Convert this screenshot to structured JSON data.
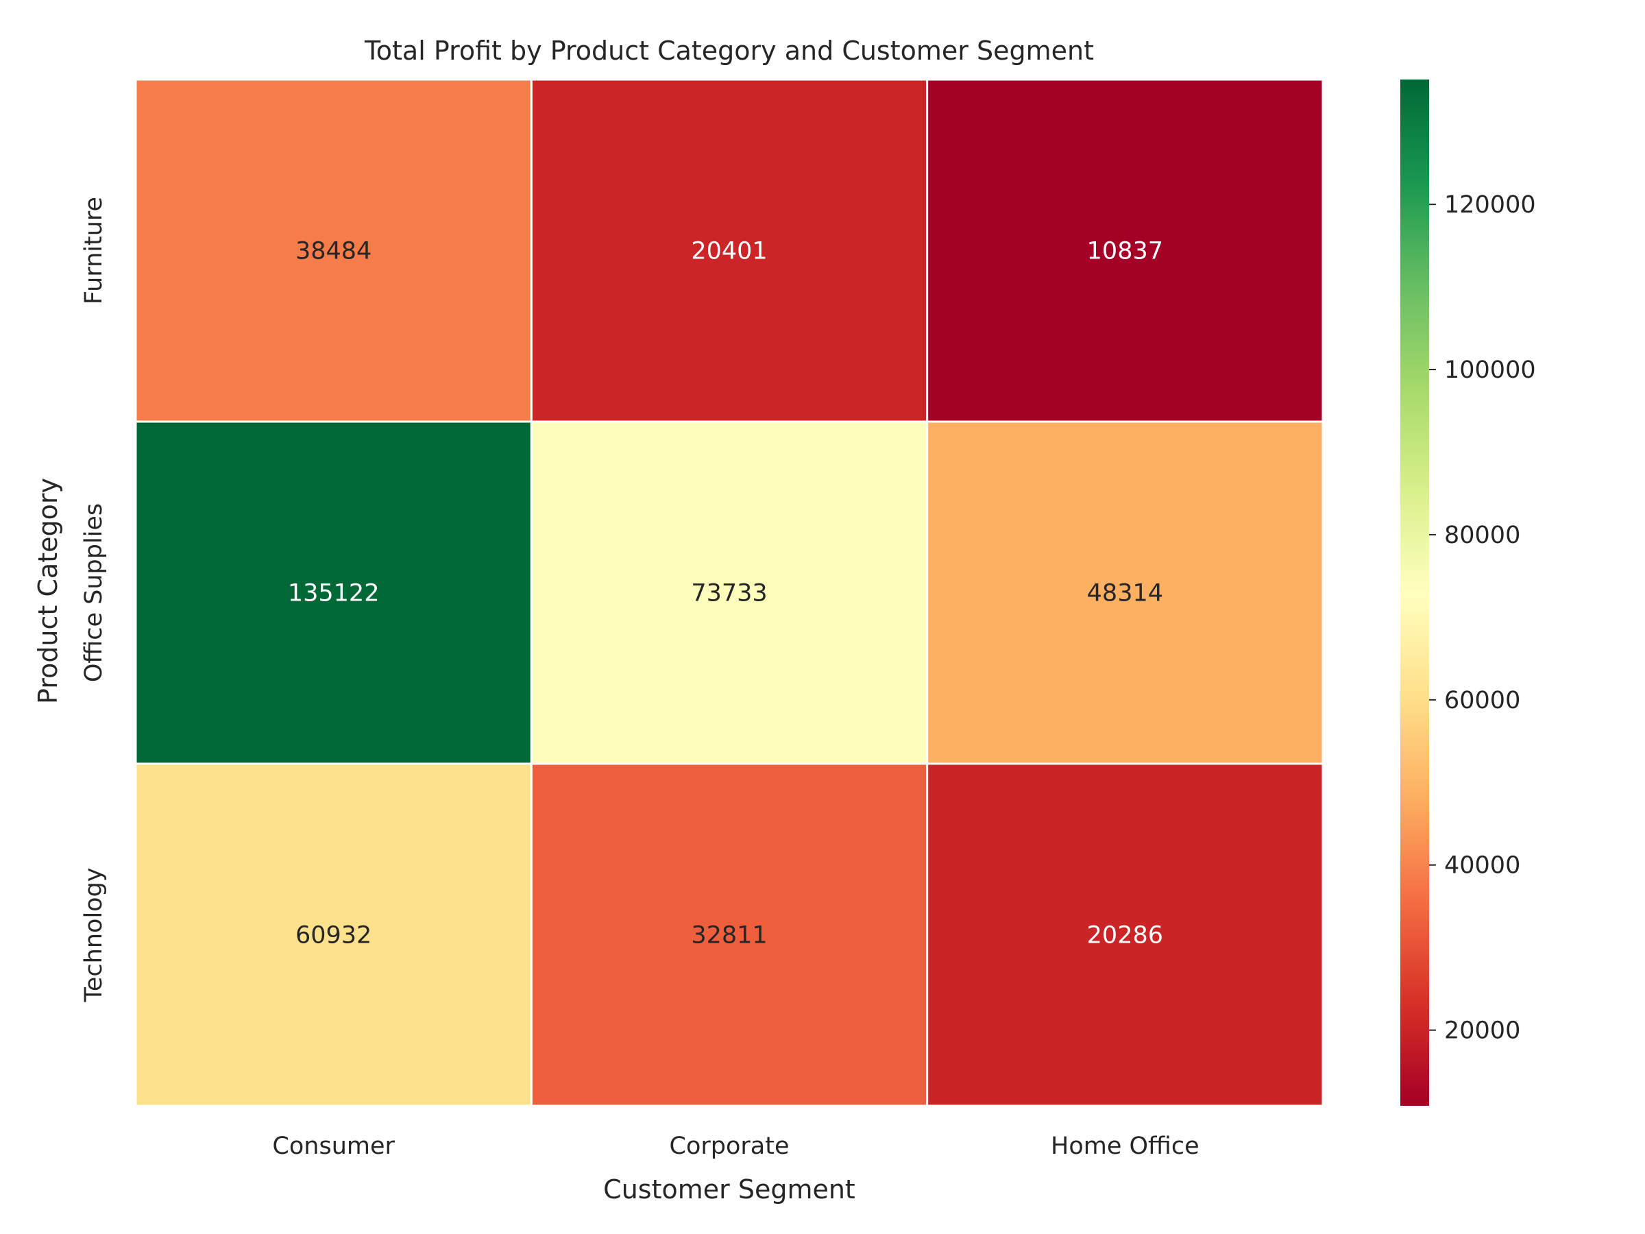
{
  "chart_data": {
    "type": "heatmap",
    "title": "Total Profit by Product Category and Customer Segment",
    "xlabel": "Customer Segment",
    "ylabel": "Product Category",
    "x_categories": [
      "Consumer",
      "Corporate",
      "Home Office"
    ],
    "y_categories": [
      "Furniture",
      "Office Supplies",
      "Technology"
    ],
    "values": [
      [
        38484,
        20401,
        10837
      ],
      [
        135122,
        73733,
        48314
      ],
      [
        60932,
        32811,
        20286
      ]
    ],
    "colormap": "RdYlGn",
    "color_range": [
      10837,
      135122
    ],
    "colorbar_ticks": [
      20000,
      40000,
      60000,
      80000,
      100000,
      120000
    ],
    "colorbar_tick_labels": [
      "20000",
      "40000",
      "60000",
      "80000",
      "100000",
      "120000"
    ],
    "cell_border_color": "#ffffff",
    "grid": false,
    "legend": "colorbar-right"
  }
}
